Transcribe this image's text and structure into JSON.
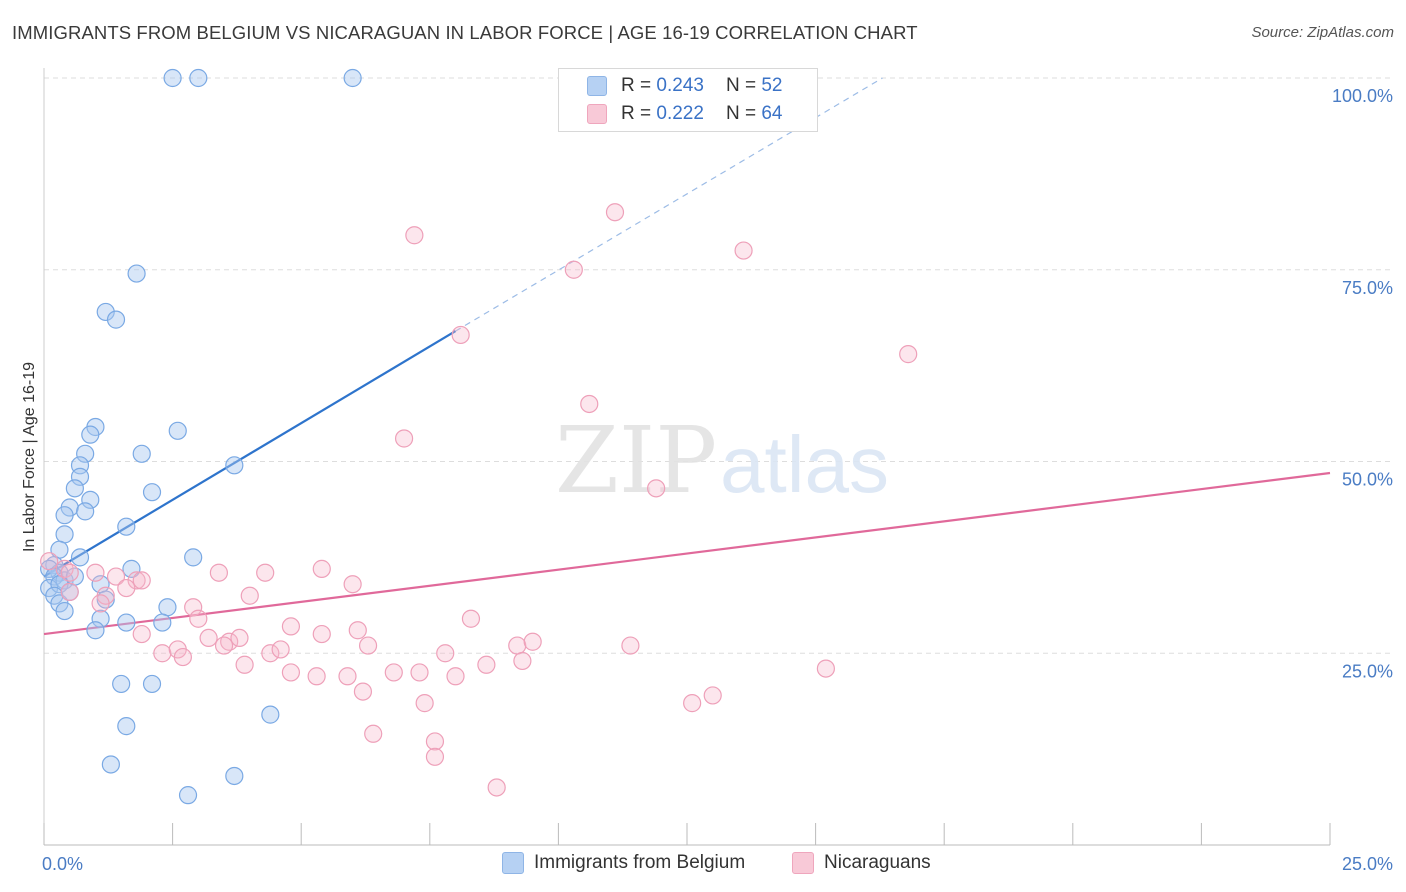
{
  "title": "IMMIGRANTS FROM BELGIUM VS NICARAGUAN IN LABOR FORCE | AGE 16-19 CORRELATION CHART",
  "source": "Source: ZipAtlas.com",
  "watermark": {
    "zip": "ZIP",
    "atlas": "atlas"
  },
  "legend": {
    "r_label": "R =",
    "n_label": "N =",
    "belgium": {
      "r": "0.243",
      "n": "52",
      "color": "#a8c8f0"
    },
    "nicaraguan": {
      "r": "0.222",
      "n": "64",
      "color": "#f5b8cb"
    }
  },
  "bottom_legend": {
    "belgium": "Immigrants from Belgium",
    "nicaraguan": "Nicaraguans"
  },
  "chart_data": {
    "type": "scatter",
    "title": "IMMIGRANTS FROM BELGIUM VS NICARAGUAN IN LABOR FORCE | AGE 16-19 CORRELATION CHART",
    "xlabel": "",
    "ylabel": "In Labor Force | Age 16-19",
    "xlim": [
      0,
      25
    ],
    "ylim": [
      0,
      100
    ],
    "x_tick_labels": [
      "0.0%",
      "25.0%"
    ],
    "y_ticks": [
      25,
      50,
      75,
      100
    ],
    "y_tick_labels": [
      "25.0%",
      "50.0%",
      "75.0%",
      "100.0%"
    ],
    "grid": true,
    "legend_position": "top-center",
    "series": [
      {
        "name": "Immigrants from Belgium",
        "color": "#6fa3e6",
        "trend_color": "#2e74cc",
        "trend": {
          "x0": 0.0,
          "y0": 35.0,
          "x1": 8.0,
          "y1": 67.0,
          "dash_to_x": 16.3,
          "dash_to_y": 100.0
        },
        "points": [
          [
            2.5,
            100
          ],
          [
            3.0,
            100
          ],
          [
            6.0,
            100
          ],
          [
            1.8,
            74.5
          ],
          [
            1.2,
            69.5
          ],
          [
            1.4,
            68.5
          ],
          [
            1.0,
            54.5
          ],
          [
            0.9,
            53.5
          ],
          [
            2.6,
            54.0
          ],
          [
            0.8,
            51.0
          ],
          [
            1.9,
            51.0
          ],
          [
            0.7,
            49.5
          ],
          [
            3.7,
            49.5
          ],
          [
            0.7,
            48.0
          ],
          [
            0.6,
            46.5
          ],
          [
            2.1,
            46.0
          ],
          [
            0.5,
            44.0
          ],
          [
            0.9,
            45.0
          ],
          [
            0.4,
            43.0
          ],
          [
            0.8,
            43.5
          ],
          [
            1.6,
            41.5
          ],
          [
            0.4,
            40.5
          ],
          [
            0.3,
            38.5
          ],
          [
            0.7,
            37.5
          ],
          [
            2.9,
            37.5
          ],
          [
            0.2,
            36.5
          ],
          [
            0.3,
            35.5
          ],
          [
            0.1,
            36.0
          ],
          [
            0.2,
            35.0
          ],
          [
            0.4,
            34.5
          ],
          [
            1.7,
            36.0
          ],
          [
            0.1,
            33.5
          ],
          [
            0.3,
            34.0
          ],
          [
            1.1,
            34.0
          ],
          [
            0.2,
            32.5
          ],
          [
            0.3,
            31.5
          ],
          [
            1.2,
            32.0
          ],
          [
            0.4,
            30.5
          ],
          [
            2.4,
            31.0
          ],
          [
            1.1,
            29.5
          ],
          [
            1.6,
            29.0
          ],
          [
            2.3,
            29.0
          ],
          [
            1.0,
            28.0
          ],
          [
            1.5,
            21.0
          ],
          [
            2.1,
            21.0
          ],
          [
            4.4,
            17.0
          ],
          [
            1.6,
            15.5
          ],
          [
            1.3,
            10.5
          ],
          [
            3.7,
            9.0
          ],
          [
            2.8,
            6.5
          ],
          [
            0.5,
            33.0
          ],
          [
            0.6,
            35.0
          ]
        ]
      },
      {
        "name": "Nicaraguans",
        "color": "#f0a2bb",
        "trend_color": "#e0699a",
        "trend": {
          "x0": 0.0,
          "y0": 27.5,
          "x1": 25.0,
          "y1": 48.5
        },
        "points": [
          [
            11.1,
            82.5
          ],
          [
            7.2,
            79.5
          ],
          [
            10.3,
            75.0
          ],
          [
            13.6,
            77.5
          ],
          [
            8.1,
            66.5
          ],
          [
            16.8,
            64.0
          ],
          [
            10.6,
            57.5
          ],
          [
            7.0,
            53.0
          ],
          [
            11.9,
            46.5
          ],
          [
            0.1,
            37.0
          ],
          [
            0.4,
            36.0
          ],
          [
            0.5,
            35.5
          ],
          [
            1.4,
            35.0
          ],
          [
            1.0,
            35.5
          ],
          [
            1.8,
            34.5
          ],
          [
            1.9,
            34.5
          ],
          [
            3.4,
            35.5
          ],
          [
            4.3,
            35.5
          ],
          [
            5.4,
            36.0
          ],
          [
            6.0,
            34.0
          ],
          [
            1.2,
            32.5
          ],
          [
            1.6,
            33.5
          ],
          [
            4.0,
            32.5
          ],
          [
            1.1,
            31.5
          ],
          [
            2.9,
            31.0
          ],
          [
            3.0,
            29.5
          ],
          [
            4.8,
            28.5
          ],
          [
            6.1,
            28.0
          ],
          [
            5.4,
            27.5
          ],
          [
            1.9,
            27.5
          ],
          [
            3.2,
            27.0
          ],
          [
            3.6,
            26.5
          ],
          [
            3.8,
            27.0
          ],
          [
            8.3,
            29.5
          ],
          [
            9.2,
            26.0
          ],
          [
            9.5,
            26.5
          ],
          [
            11.4,
            26.0
          ],
          [
            2.3,
            25.0
          ],
          [
            2.6,
            25.5
          ],
          [
            3.5,
            26.0
          ],
          [
            4.4,
            25.0
          ],
          [
            4.6,
            25.5
          ],
          [
            6.3,
            26.0
          ],
          [
            2.7,
            24.5
          ],
          [
            3.9,
            23.5
          ],
          [
            5.3,
            22.0
          ],
          [
            4.8,
            22.5
          ],
          [
            5.9,
            22.0
          ],
          [
            6.8,
            22.5
          ],
          [
            7.3,
            22.5
          ],
          [
            7.8,
            25.0
          ],
          [
            8.6,
            23.5
          ],
          [
            8.0,
            22.0
          ],
          [
            9.3,
            24.0
          ],
          [
            6.2,
            20.0
          ],
          [
            7.4,
            18.5
          ],
          [
            12.6,
            18.5
          ],
          [
            13.0,
            19.5
          ],
          [
            15.2,
            23.0
          ],
          [
            6.4,
            14.5
          ],
          [
            7.6,
            13.5
          ],
          [
            7.6,
            11.5
          ],
          [
            8.8,
            7.5
          ],
          [
            0.5,
            33.0
          ]
        ]
      }
    ]
  }
}
